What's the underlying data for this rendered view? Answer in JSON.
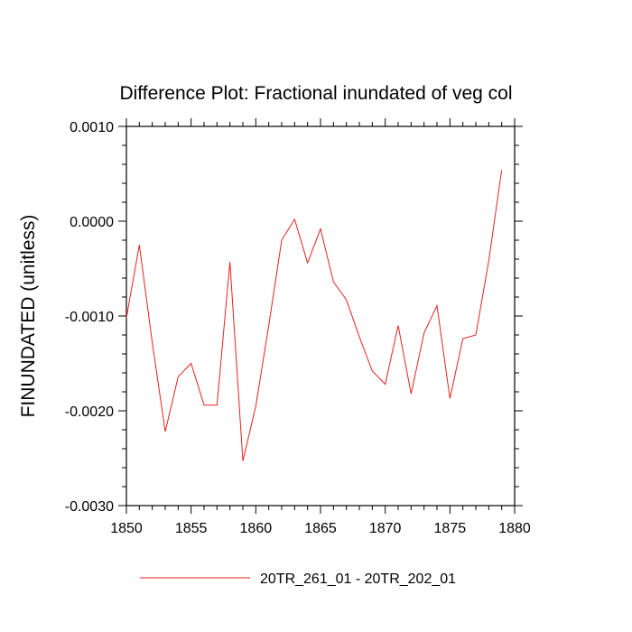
{
  "chart_data": {
    "type": "line",
    "title": "Difference Plot: Fractional inundated of veg col",
    "xlabel": "",
    "ylabel": "FINUNDATED  (unitless)",
    "xlim": [
      1850,
      1880
    ],
    "ylim": [
      -0.003,
      0.001
    ],
    "x_ticks": [
      1850,
      1855,
      1860,
      1865,
      1870,
      1875,
      1880
    ],
    "x_tick_labels": [
      "1850",
      "1855",
      "1860",
      "1865",
      "1870",
      "1875",
      "1880"
    ],
    "y_ticks": [
      -0.003,
      -0.002,
      -0.001,
      0.0,
      0.001
    ],
    "y_tick_labels": [
      "-0.0030",
      "-0.0020",
      "-0.0010",
      "0.0000",
      "0.0010"
    ],
    "grid": false,
    "legend_position": "bottom-center",
    "series": [
      {
        "name": "20TR_261_01 - 20TR_202_01",
        "color": "#e8201f",
        "x": [
          1850,
          1851,
          1852,
          1853,
          1854,
          1855,
          1856,
          1857,
          1858,
          1859,
          1860,
          1861,
          1862,
          1863,
          1864,
          1865,
          1866,
          1867,
          1868,
          1869,
          1870,
          1871,
          1872,
          1873,
          1874,
          1875,
          1876,
          1877,
          1878,
          1879
        ],
        "values": [
          -0.00102,
          -0.00025,
          -0.00128,
          -0.00222,
          -0.00164,
          -0.0015,
          -0.00194,
          -0.00194,
          -0.00043,
          -0.00253,
          -0.00195,
          -0.0011,
          -0.0002,
          2e-05,
          -0.00044,
          -8e-05,
          -0.00064,
          -0.00083,
          -0.00122,
          -0.00158,
          -0.00172,
          -0.0011,
          -0.00182,
          -0.00118,
          -0.00089,
          -0.00187,
          -0.00124,
          -0.0012,
          -0.00042,
          0.00054
        ]
      }
    ]
  }
}
